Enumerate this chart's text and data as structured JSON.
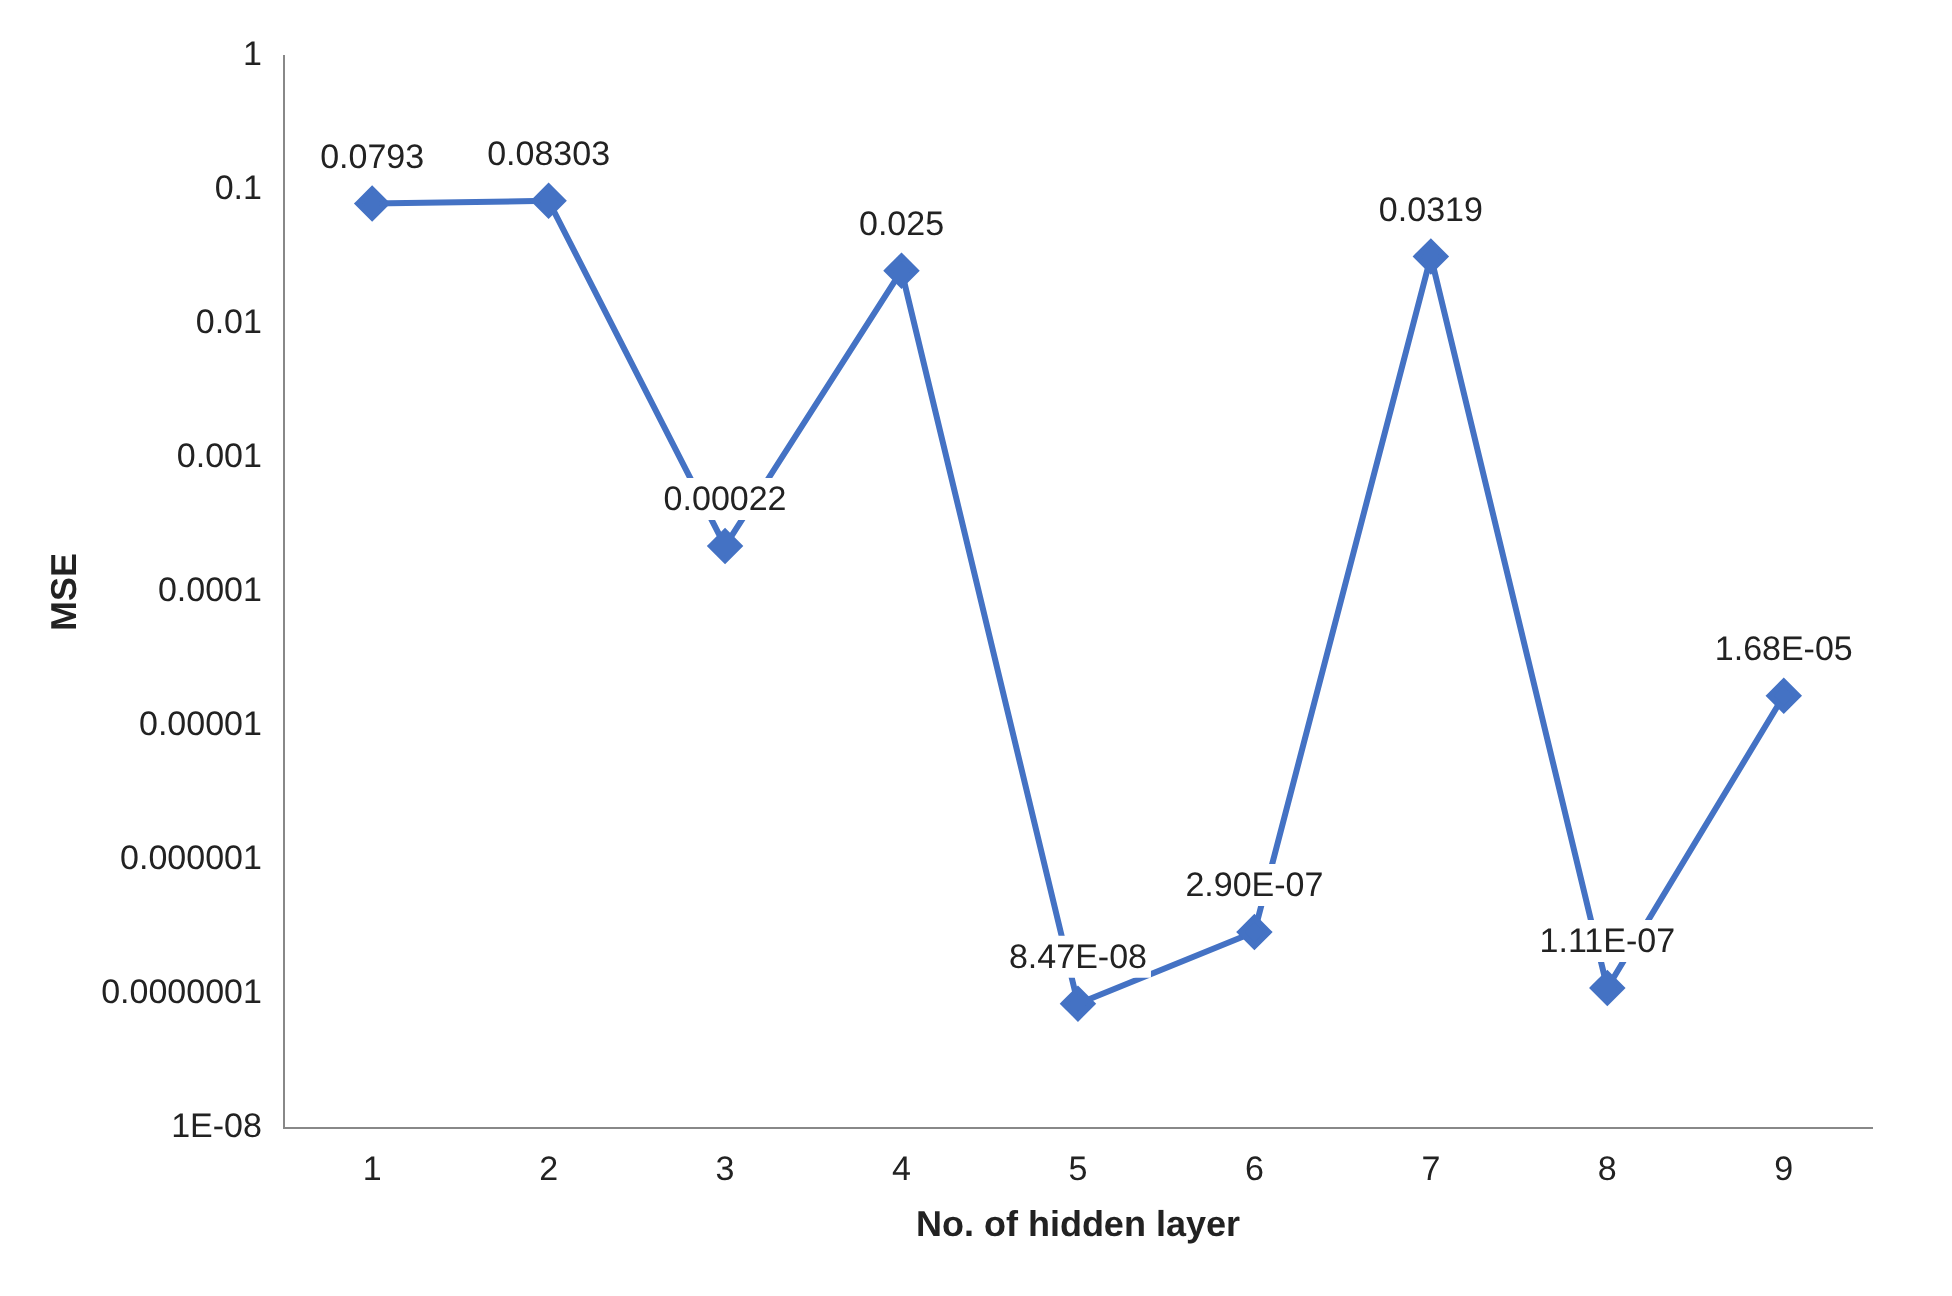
{
  "chart_data": {
    "type": "line",
    "xlabel": "No. of hidden layer",
    "ylabel": "MSE",
    "categories": [
      "1",
      "2",
      "3",
      "4",
      "5",
      "6",
      "7",
      "8",
      "9"
    ],
    "series": [
      {
        "color": "#4472c4",
        "values": [
          0.0793,
          0.08303,
          0.00022,
          0.025,
          8.47e-08,
          2.9e-07,
          0.0319,
          1.11e-07,
          1.68e-05
        ],
        "value_labels": [
          "0.0793",
          "0.08303",
          "0.00022",
          "0.025",
          "8.47E-08",
          "2.90E-07",
          "0.0319",
          "1.11E-07",
          "1.68E-05"
        ]
      }
    ],
    "log": "y",
    "ylim": [
      1e-08,
      1
    ],
    "yticks": [
      {
        "value": 1e-08,
        "label": "1E-08"
      },
      {
        "value": 1e-07,
        "label": "0.0000001"
      },
      {
        "value": 1e-06,
        "label": "0.000001"
      },
      {
        "value": 1e-05,
        "label": "0.00001"
      },
      {
        "value": 0.0001,
        "label": "0.0001"
      },
      {
        "value": 0.001,
        "label": "0.001"
      },
      {
        "value": 0.01,
        "label": "0.01"
      },
      {
        "value": 0.1,
        "label": "0.1"
      },
      {
        "value": 1,
        "label": "1"
      }
    ],
    "marker": "diamond",
    "line_style": "solid",
    "grid": false,
    "legend": false
  }
}
